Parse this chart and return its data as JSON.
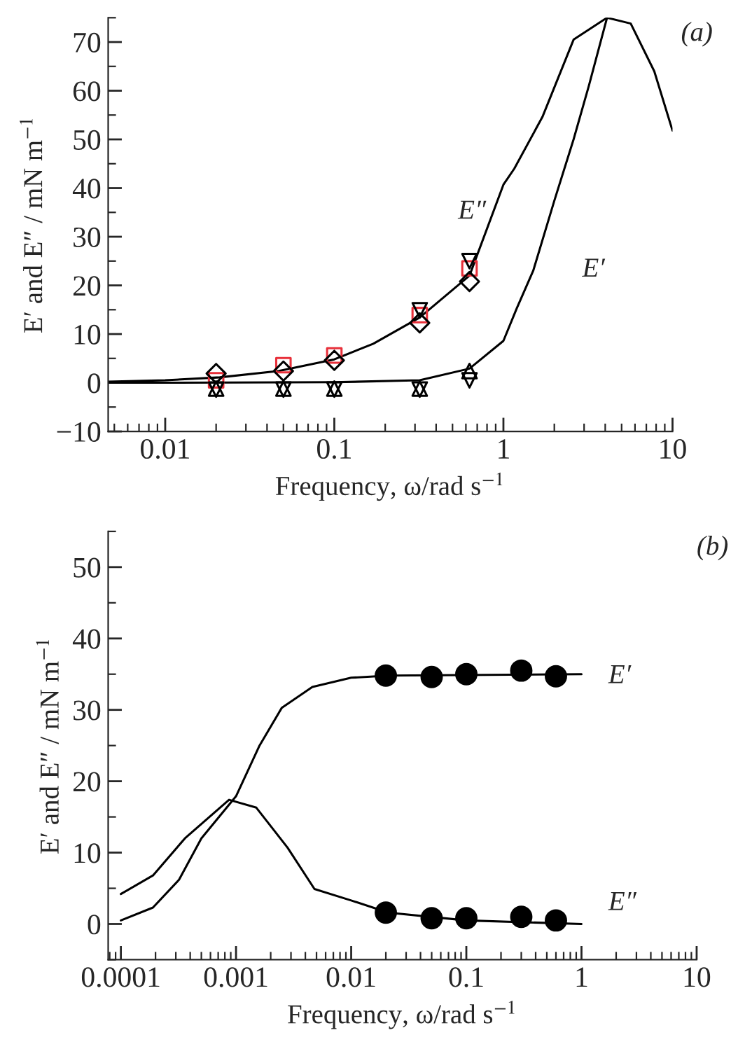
{
  "chart_data": [
    {
      "type": "line",
      "xlabel": "Frequency, ω/rad s$^{−1}$",
      "ylabel": "E′ and E″ / mN m$^{−1}$",
      "log": "x",
      "grid": false,
      "xlim": [
        0.0046,
        10
      ],
      "xticks": [
        0.01,
        0.1,
        1,
        10
      ],
      "ylim": [
        -10,
        75
      ],
      "yticks": [
        {
          "value": -10,
          "label": "−10"
        },
        0,
        10,
        20,
        30,
        40,
        50,
        60,
        70
      ],
      "annotations": [
        "(a)",
        "E″",
        "E′"
      ],
      "series": [
        {
          "type": "line",
          "color": "#000000",
          "x": [
            0.0046,
            0.01,
            0.021,
            0.047,
            0.1,
            0.17,
            0.32,
            0.63,
            1,
            1.16,
            1.7,
            2.6,
            4.1,
            5.66,
            7.8,
            10
          ],
          "values": [
            0.2,
            0.5,
            1.1,
            2.4,
            4.8,
            8,
            13.4,
            22,
            40.7,
            44,
            54.6,
            70.5,
            75,
            73.8,
            64,
            51.8
          ]
        },
        {
          "type": "line",
          "color": "#000000",
          "x": [
            0.0046,
            0.01,
            0.1,
            0.32,
            0.63,
            1,
            1.2,
            1.5,
            2,
            2.6,
            3.2,
            4.1
          ],
          "values": [
            0,
            0,
            0.1,
            0.5,
            2.9,
            8.6,
            15.3,
            23,
            37.4,
            50,
            61,
            75
          ]
        },
        {
          "type": "scatter",
          "marker": "square",
          "color": "#e8303a",
          "x": [
            0.02,
            0.05,
            0.1,
            0.32,
            0.63
          ],
          "values": [
            0.5,
            3.6,
            5.6,
            13.9,
            23.5
          ]
        },
        {
          "type": "scatter",
          "marker": "triangle_down",
          "color": "#000000",
          "x": [
            0.32,
            0.63
          ],
          "values": [
            14.9,
            25
          ]
        },
        {
          "type": "scatter",
          "marker": "diamond",
          "color": "#000000",
          "x": [
            0.02,
            0.05,
            0.1,
            0.32,
            0.63
          ],
          "values": [
            1.9,
            2.4,
            4.6,
            12.3,
            20.8
          ]
        },
        {
          "type": "scatter",
          "marker": "triangle",
          "color": "#000000",
          "x": [
            0.02,
            0.05,
            0.1,
            0.32,
            0.63
          ],
          "values": [
            -1.2,
            -1.2,
            -1.2,
            -1.2,
            2.4
          ]
        },
        {
          "type": "scatter",
          "marker": "triangle_down",
          "color": "#000000",
          "x": [
            0.02,
            0.05,
            0.1,
            0.32,
            0.63
          ],
          "values": [
            -1.4,
            -1.4,
            -1.4,
            -1.4,
            0.5
          ]
        }
      ]
    },
    {
      "type": "line",
      "xlabel": "Frequency, ω/rad s$^{−1}$",
      "ylabel": "E′ and E″ / mN m$^{−1}$",
      "log": "x",
      "grid": false,
      "xlim": [
        7.76e-05,
        10
      ],
      "xticks": [
        0.0001,
        0.001,
        0.01,
        0.1,
        1,
        10
      ],
      "ylim": [
        -5,
        55
      ],
      "yticks": [
        0,
        10,
        20,
        30,
        40,
        50
      ],
      "annotations": [
        "(b)",
        "E′",
        "E″"
      ],
      "series": [
        {
          "type": "line",
          "color": "#000000",
          "x": [
            0.0001,
            0.00019,
            0.00032,
            0.0005,
            0.001,
            0.0016,
            0.0025,
            0.0046,
            0.01,
            0.021,
            1
          ],
          "values": [
            0.5,
            2.3,
            6.2,
            12,
            17.9,
            25,
            30.3,
            33.2,
            34.5,
            34.8,
            35
          ]
        },
        {
          "type": "line",
          "color": "#000000",
          "x": [
            0.0001,
            0.00019,
            0.00036,
            0.00087,
            0.0015,
            0.0028,
            0.0048,
            0.01,
            0.021,
            0.1,
            1
          ],
          "values": [
            4.2,
            6.8,
            12,
            17.4,
            16.3,
            10.7,
            4.9,
            3.3,
            1.6,
            0.5,
            0
          ]
        },
        {
          "type": "scatter",
          "marker": "circle",
          "color": "#000000",
          "x": [
            0.02,
            0.05,
            0.1,
            0.3,
            0.6
          ],
          "values": [
            34.8,
            34.6,
            35.0,
            35.5,
            34.7
          ]
        },
        {
          "type": "scatter",
          "marker": "circle",
          "color": "#000000",
          "x": [
            0.02,
            0.05,
            0.1,
            0.3,
            0.6
          ],
          "values": [
            1.6,
            0.8,
            0.8,
            1.0,
            0.5
          ]
        }
      ]
    }
  ]
}
